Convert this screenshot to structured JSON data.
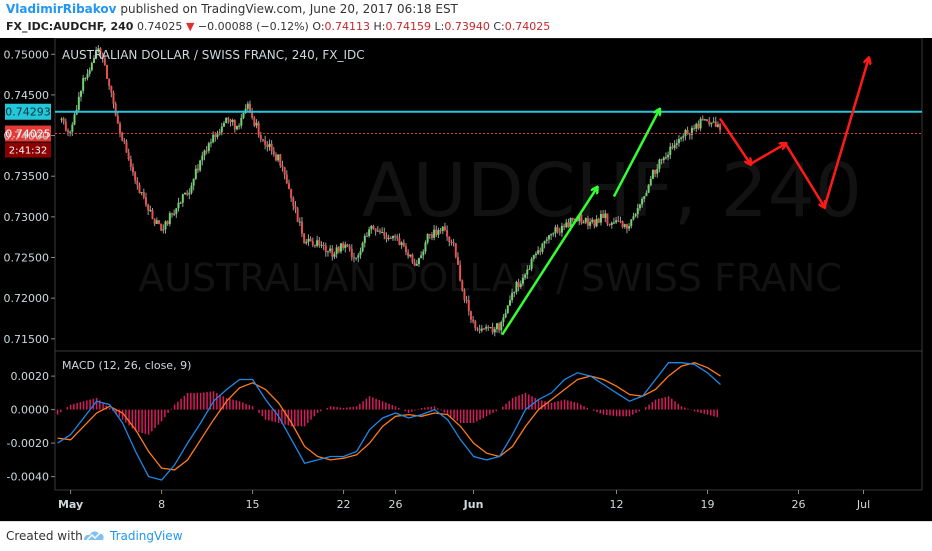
{
  "header": {
    "author": "VladimirRibakov",
    "published": "published on TradingView.com, June 20, 2017 06:18 EST",
    "symbol": "FX_IDC:AUDCHF, 240",
    "last": "0.74025",
    "change_arrow": "▼",
    "change": "−0.00088 (−0.12%)",
    "o_label": "O:",
    "o": "0.74113",
    "h_label": "H:",
    "h": "0.74159",
    "l_label": "L:",
    "l": "0.73940",
    "c_label": "C:",
    "c": "0.74025"
  },
  "footer": {
    "created": "Created with",
    "brand": "TradingView"
  },
  "colors": {
    "background": "#000000",
    "up": "#6fd36f",
    "down": "#e85050",
    "resistance": "#26c6da",
    "current": "#e53935",
    "green_arrow": "#33ff33",
    "red_arrow": "#ff1a1a",
    "macd": "#1e88e5",
    "signal": "#ff7a1a",
    "hist": "#d81b60"
  },
  "chart_data": [
    {
      "type": "candlestick",
      "title": "AUSTRALIAN DOLLAR / SWISS FRANC, 240, FX_IDC",
      "watermark_line1": "AUDCHF, 240",
      "watermark_line2": "AUSTRALIAN DOLLAR / SWISS FRANC",
      "ylim": [
        0.7135,
        0.752
      ],
      "y_ticks": [
        0.715,
        0.72,
        0.725,
        0.73,
        0.735,
        0.74,
        0.745,
        0.75
      ],
      "y_tick_labels": [
        "0.71500",
        "0.72000",
        "0.72500",
        "0.73000",
        "0.73500",
        "0.74000",
        "0.74500",
        "0.75000"
      ],
      "x_tick_labels": [
        "May",
        "8",
        "15",
        "22",
        "26",
        "Jun",
        "12",
        "19",
        "26",
        "Jul"
      ],
      "x_tick_days": [
        0,
        7,
        14,
        21,
        25,
        31,
        42,
        49,
        56,
        61
      ],
      "day_range": [
        -1.2,
        65.5
      ],
      "close_path": [
        [
          -0.7,
          0.742
        ],
        [
          0.0,
          0.74
        ],
        [
          1.0,
          0.747
        ],
        [
          2.2,
          0.751
        ],
        [
          3.0,
          0.746
        ],
        [
          3.6,
          0.742
        ],
        [
          4.3,
          0.738
        ],
        [
          5.0,
          0.734
        ],
        [
          6.0,
          0.731
        ],
        [
          7.0,
          0.728
        ],
        [
          8.0,
          0.731
        ],
        [
          9.0,
          0.733
        ],
        [
          10.0,
          0.737
        ],
        [
          11.0,
          0.74
        ],
        [
          12.0,
          0.742
        ],
        [
          13.0,
          0.741
        ],
        [
          13.6,
          0.744
        ],
        [
          14.0,
          0.742
        ],
        [
          15.0,
          0.739
        ],
        [
          16.0,
          0.737
        ],
        [
          17.0,
          0.732
        ],
        [
          18.0,
          0.727
        ],
        [
          19.0,
          0.727
        ],
        [
          20.0,
          0.7255
        ],
        [
          21.0,
          0.7265
        ],
        [
          22.0,
          0.725
        ],
        [
          23.0,
          0.7285
        ],
        [
          24.0,
          0.728
        ],
        [
          25.0,
          0.7275
        ],
        [
          26.5,
          0.724
        ],
        [
          27.5,
          0.7275
        ],
        [
          28.5,
          0.7285
        ],
        [
          29.5,
          0.7265
        ],
        [
          30.3,
          0.72
        ],
        [
          31.0,
          0.717
        ],
        [
          32.0,
          0.716
        ],
        [
          33.0,
          0.7165
        ],
        [
          34.0,
          0.721
        ],
        [
          35.0,
          0.723
        ],
        [
          36.0,
          0.726
        ],
        [
          37.0,
          0.728
        ],
        [
          38.0,
          0.729
        ],
        [
          39.0,
          0.73
        ],
        [
          40.0,
          0.729
        ],
        [
          41.0,
          0.73
        ],
        [
          42.0,
          0.729
        ],
        [
          43.0,
          0.729
        ],
        [
          44.0,
          0.732
        ],
        [
          45.0,
          0.736
        ],
        [
          46.0,
          0.738
        ],
        [
          47.0,
          0.74
        ],
        [
          48.0,
          0.741
        ],
        [
          49.0,
          0.742
        ],
        [
          50.0,
          0.741
        ]
      ],
      "resistance": {
        "value": 0.74293,
        "label": "0.74293"
      },
      "current": {
        "value": 0.74025,
        "label": "0.74025",
        "countdown": "2:41:32"
      },
      "green_arrows": [
        {
          "from": [
            33.2,
            0.7155
          ],
          "to": [
            40.5,
            0.7336
          ]
        },
        {
          "from": [
            41.8,
            0.7325
          ],
          "to": [
            45.3,
            0.7432
          ]
        }
      ],
      "red_projection": [
        [
          50.0,
          0.742
        ],
        [
          52.3,
          0.7365
        ],
        [
          55.0,
          0.739
        ],
        [
          58.0,
          0.7312
        ],
        [
          61.4,
          0.7495
        ]
      ]
    },
    {
      "type": "line",
      "title": "MACD (12, 26, close, 9)",
      "ylim": [
        -0.0048,
        0.0035
      ],
      "y_ticks": [
        -0.004,
        -0.002,
        0.0,
        0.002
      ],
      "y_tick_labels": [
        "-0.0040",
        "-0.0020",
        "0.0000",
        "0.0020"
      ],
      "series": [
        {
          "name": "MACD",
          "points": [
            [
              -1.0,
              -0.002
            ],
            [
              0.0,
              -0.0015
            ],
            [
              1.0,
              -0.0005
            ],
            [
              2.0,
              0.0005
            ],
            [
              3.0,
              0.0003
            ],
            [
              4.0,
              -0.0008
            ],
            [
              5.0,
              -0.0025
            ],
            [
              6.0,
              -0.004
            ],
            [
              7.0,
              -0.0042
            ],
            [
              8.0,
              -0.0033
            ],
            [
              9.0,
              -0.002
            ],
            [
              10.0,
              -0.0008
            ],
            [
              11.0,
              0.0005
            ],
            [
              12.0,
              0.0012
            ],
            [
              13.0,
              0.0018
            ],
            [
              14.0,
              0.0018
            ],
            [
              15.0,
              0.0006
            ],
            [
              16.0,
              -0.0004
            ],
            [
              17.0,
              -0.0018
            ],
            [
              18.0,
              -0.0032
            ],
            [
              19.0,
              -0.003
            ],
            [
              20.0,
              -0.0028
            ],
            [
              21.0,
              -0.0028
            ],
            [
              22.0,
              -0.0025
            ],
            [
              23.0,
              -0.0012
            ],
            [
              24.0,
              -0.0005
            ],
            [
              25.0,
              -0.0002
            ],
            [
              26.0,
              -0.0005
            ],
            [
              27.0,
              -0.0003
            ],
            [
              28.0,
              0.0
            ],
            [
              29.0,
              -0.0006
            ],
            [
              30.0,
              -0.0018
            ],
            [
              31.0,
              -0.0028
            ],
            [
              32.0,
              -0.003
            ],
            [
              33.0,
              -0.0028
            ],
            [
              34.0,
              -0.0015
            ],
            [
              35.0,
              0.0
            ],
            [
              36.0,
              0.0006
            ],
            [
              37.0,
              0.001
            ],
            [
              38.0,
              0.0018
            ],
            [
              39.0,
              0.0022
            ],
            [
              40.0,
              0.002
            ],
            [
              41.0,
              0.0015
            ],
            [
              42.0,
              0.001
            ],
            [
              43.0,
              0.0005
            ],
            [
              44.0,
              0.0008
            ],
            [
              45.0,
              0.0018
            ],
            [
              46.0,
              0.0028
            ],
            [
              47.0,
              0.0028
            ],
            [
              48.0,
              0.0027
            ],
            [
              49.0,
              0.0022
            ],
            [
              50.0,
              0.0015
            ]
          ]
        },
        {
          "name": "Signal",
          "points": [
            [
              -1.0,
              -0.0017
            ],
            [
              0.0,
              -0.0018
            ],
            [
              1.0,
              -0.001
            ],
            [
              2.0,
              -0.0002
            ],
            [
              3.0,
              0.0002
            ],
            [
              4.0,
              -0.0002
            ],
            [
              5.0,
              -0.0012
            ],
            [
              6.0,
              -0.0025
            ],
            [
              7.0,
              -0.0035
            ],
            [
              8.0,
              -0.0036
            ],
            [
              9.0,
              -0.003
            ],
            [
              10.0,
              -0.0018
            ],
            [
              11.0,
              -0.0006
            ],
            [
              12.0,
              0.0005
            ],
            [
              13.0,
              0.0013
            ],
            [
              14.0,
              0.0016
            ],
            [
              15.0,
              0.0012
            ],
            [
              16.0,
              0.0004
            ],
            [
              17.0,
              -0.0008
            ],
            [
              18.0,
              -0.0022
            ],
            [
              19.0,
              -0.0028
            ],
            [
              20.0,
              -0.003
            ],
            [
              21.0,
              -0.0029
            ],
            [
              22.0,
              -0.0027
            ],
            [
              23.0,
              -0.002
            ],
            [
              24.0,
              -0.001
            ],
            [
              25.0,
              -0.0004
            ],
            [
              26.0,
              -0.0003
            ],
            [
              27.0,
              -0.0004
            ],
            [
              28.0,
              -0.0002
            ],
            [
              29.0,
              -0.0003
            ],
            [
              30.0,
              -0.001
            ],
            [
              31.0,
              -0.002
            ],
            [
              32.0,
              -0.0026
            ],
            [
              33.0,
              -0.0028
            ],
            [
              34.0,
              -0.0022
            ],
            [
              35.0,
              -0.001
            ],
            [
              36.0,
              0.0
            ],
            [
              37.0,
              0.0006
            ],
            [
              38.0,
              0.0012
            ],
            [
              39.0,
              0.0018
            ],
            [
              40.0,
              0.002
            ],
            [
              41.0,
              0.0018
            ],
            [
              42.0,
              0.0014
            ],
            [
              43.0,
              0.0009
            ],
            [
              44.0,
              0.0008
            ],
            [
              45.0,
              0.0012
            ],
            [
              46.0,
              0.002
            ],
            [
              47.0,
              0.0026
            ],
            [
              48.0,
              0.0028
            ],
            [
              49.0,
              0.0025
            ],
            [
              50.0,
              0.002
            ]
          ]
        }
      ]
    }
  ]
}
